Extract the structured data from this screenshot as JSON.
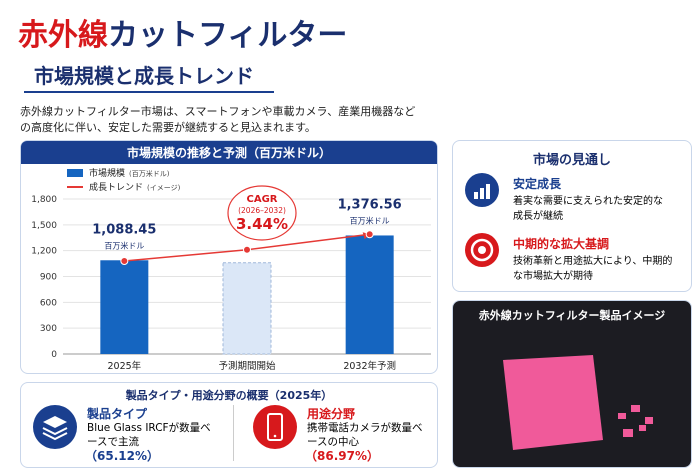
{
  "header": {
    "title_red": "赤外線",
    "title_blue": "カットフィルター",
    "subtitle": "市場規模と成長トレンド",
    "intro": "赤外線カットフィルター市場は、スマートフォンや車載カメラ、産業用機器などの高度化に伴い、安定した需要が継続すると見込まれます。"
  },
  "chart_data": {
    "type": "bar",
    "title": "市場規模の推移と予測（百万米ドル）",
    "categories": [
      "2025年",
      "予測期間開始",
      "2032年予測"
    ],
    "series": [
      {
        "name": "市場規模",
        "name_note": "(百万米ドル)",
        "color": "#1565c0",
        "colors": [
          "#1565c0",
          "#dbe7f7",
          "#1565c0"
        ],
        "values": [
          1088.45,
          1060,
          1376.56
        ],
        "value_labels": [
          "1,088.45",
          null,
          "1,376.56"
        ],
        "value_unit": "百万米ドル"
      },
      {
        "name": "成長トレンド",
        "name_note": "(イメージ)",
        "type": "line",
        "color": "#e53935",
        "values": [
          1080,
          1210,
          1390
        ]
      }
    ],
    "annotation": {
      "label": "CAGR",
      "period": "(2026–2032)",
      "value": "3.44%"
    },
    "ylim": [
      0,
      1800
    ],
    "yticks": [
      0,
      300,
      600,
      900,
      {
        "value": 1200,
        "label": "1,200"
      },
      {
        "value": 1500,
        "label": "1,500"
      },
      {
        "value": 1800,
        "label": "1,800"
      }
    ],
    "grid": true
  },
  "outlook": {
    "title": "市場の見通し",
    "items": [
      {
        "title": "安定成長",
        "text": "着実な需要に支えられた安定的な成長が継続"
      },
      {
        "title": "中期的な拡大基調",
        "text": "技術革新と用途拡大により、中期的な市場拡大が期待"
      }
    ]
  },
  "image_panel": {
    "title": "赤外線カットフィルター製品イメージ"
  },
  "overview": {
    "title": "製品タイプ・用途分野の概要（2025年）",
    "items": [
      {
        "title": "製品タイプ",
        "text": "Blue Glass IRCFが数量ベースで主流",
        "share": "（65.12%）"
      },
      {
        "title": "用途分野",
        "text": "携帯電話カメラが数量ベースの中心",
        "share": "（86.97%）"
      }
    ]
  }
}
